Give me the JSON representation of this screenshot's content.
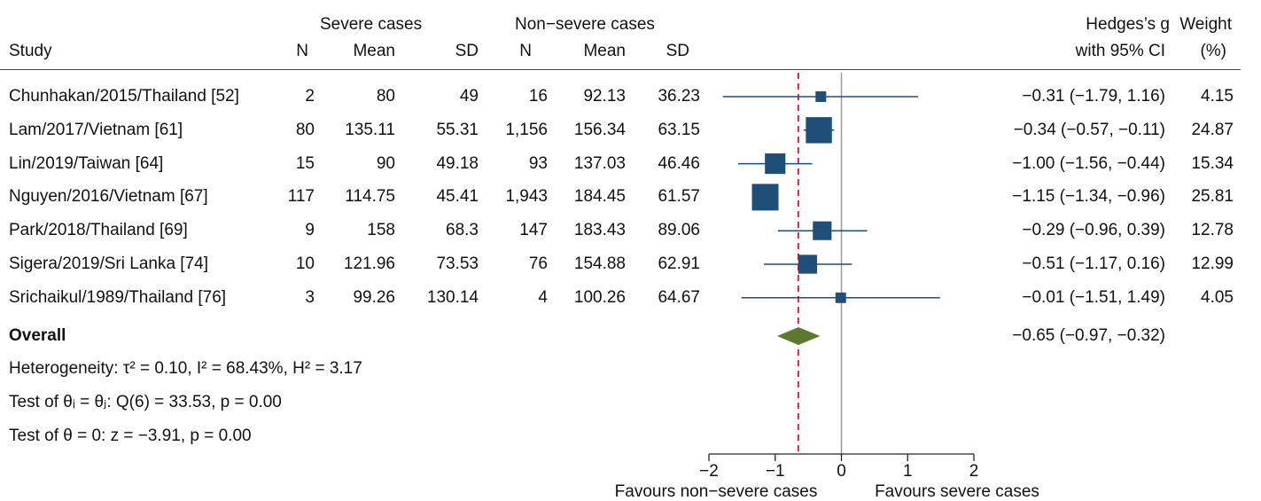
{
  "header": {
    "severe": "Severe cases",
    "nonsevere": "Non−severe cases",
    "study": "Study",
    "n": "N",
    "mean": "Mean",
    "sd": "SD",
    "hedges1": "Hedges’s g",
    "hedges2": "with 95% CI",
    "weight1": "Weight",
    "weight2": "(%)"
  },
  "rows": [
    {
      "study": "Chunhakan/2015/Thailand [52]",
      "n1": "2",
      "mean1": "80",
      "sd1": "49",
      "n2": "16",
      "mean2": "92.13",
      "sd2": "36.23",
      "ci": "−0.31 (−1.79,  1.16)",
      "weight": "4.15"
    },
    {
      "study": "Lam/2017/Vietnam [61]",
      "n1": "80",
      "mean1": "135.11",
      "sd1": "55.31",
      "n2": "1,156",
      "mean2": "156.34",
      "sd2": "63.15",
      "ci": "−0.34 (−0.57, −0.11)",
      "weight": "24.87"
    },
    {
      "study": "Lin/2019/Taiwan [64]",
      "n1": "15",
      "mean1": "90",
      "sd1": "49.18",
      "n2": "93",
      "mean2": "137.03",
      "sd2": "46.46",
      "ci": "−1.00 (−1.56, −0.44)",
      "weight": "15.34"
    },
    {
      "study": "Nguyen/2016/Vietnam [67]",
      "n1": "117",
      "mean1": "114.75",
      "sd1": "45.41",
      "n2": "1,943",
      "mean2": "184.45",
      "sd2": "61.57",
      "ci": "−1.15 (−1.34, −0.96)",
      "weight": "25.81"
    },
    {
      "study": "Park/2018/Thailand [69]",
      "n1": "9",
      "mean1": "158",
      "sd1": "68.3",
      "n2": "147",
      "mean2": "183.43",
      "sd2": "89.06",
      "ci": "−0.29 (−0.96,  0.39)",
      "weight": "12.78"
    },
    {
      "study": "Sigera/2019/Sri Lanka [74]",
      "n1": "10",
      "mean1": "121.96",
      "sd1": "73.53",
      "n2": "76",
      "mean2": "154.88",
      "sd2": "62.91",
      "ci": "−0.51 (−1.17,  0.16)",
      "weight": "12.99"
    },
    {
      "study": "Srichaikul/1989/Thailand [76]",
      "n1": "3",
      "mean1": "99.26",
      "sd1": "130.14",
      "n2": "4",
      "mean2": "100.26",
      "sd2": "64.67",
      "ci": "−0.01 (−1.51,  1.49)",
      "weight": "4.05"
    }
  ],
  "overall": {
    "label": "Overall",
    "ci": "−0.65 (−0.97, −0.32)"
  },
  "stats": {
    "heterogeneity": "Heterogeneity: τ² = 0.10, I² = 68.43%, H² = 3.17",
    "test_theta": "Test of θᵢ = θⱼ: Q(6) = 33.53, p = 0.00",
    "test_zero": "Test of θ = 0: z = −3.91, p = 0.00"
  },
  "axis": {
    "ticks": [
      -2,
      -1,
      0,
      1,
      2
    ],
    "tick_labels": [
      "−2",
      "−1",
      "0",
      "1",
      "2"
    ],
    "label_left": "Favours non−severe cases",
    "label_right": "Favours severe cases"
  },
  "colors": {
    "marker": "#1f4e79",
    "diamond": "#5b7a2e",
    "overall_line": "#cc1f3f",
    "zero_line": "#999999"
  },
  "chart_data": {
    "type": "forest",
    "xlim": [
      -2,
      2
    ],
    "overall_line_value": -0.65,
    "studies": [
      {
        "name": "Chunhakan/2015/Thailand [52]",
        "g": -0.31,
        "lo": -1.79,
        "hi": 1.16,
        "weight": 4.15
      },
      {
        "name": "Lam/2017/Vietnam [61]",
        "g": -0.34,
        "lo": -0.57,
        "hi": -0.11,
        "weight": 24.87
      },
      {
        "name": "Lin/2019/Taiwan [64]",
        "g": -1.0,
        "lo": -1.56,
        "hi": -0.44,
        "weight": 15.34
      },
      {
        "name": "Nguyen/2016/Vietnam [67]",
        "g": -1.15,
        "lo": -1.34,
        "hi": -0.96,
        "weight": 25.81
      },
      {
        "name": "Park/2018/Thailand [69]",
        "g": -0.29,
        "lo": -0.96,
        "hi": 0.39,
        "weight": 12.78
      },
      {
        "name": "Sigera/2019/Sri Lanka [74]",
        "g": -0.51,
        "lo": -1.17,
        "hi": 0.16,
        "weight": 12.99
      },
      {
        "name": "Srichaikul/1989/Thailand [76]",
        "g": -0.01,
        "lo": -1.51,
        "hi": 1.49,
        "weight": 4.05
      }
    ],
    "overall": {
      "g": -0.65,
      "lo": -0.97,
      "hi": -0.32
    }
  }
}
